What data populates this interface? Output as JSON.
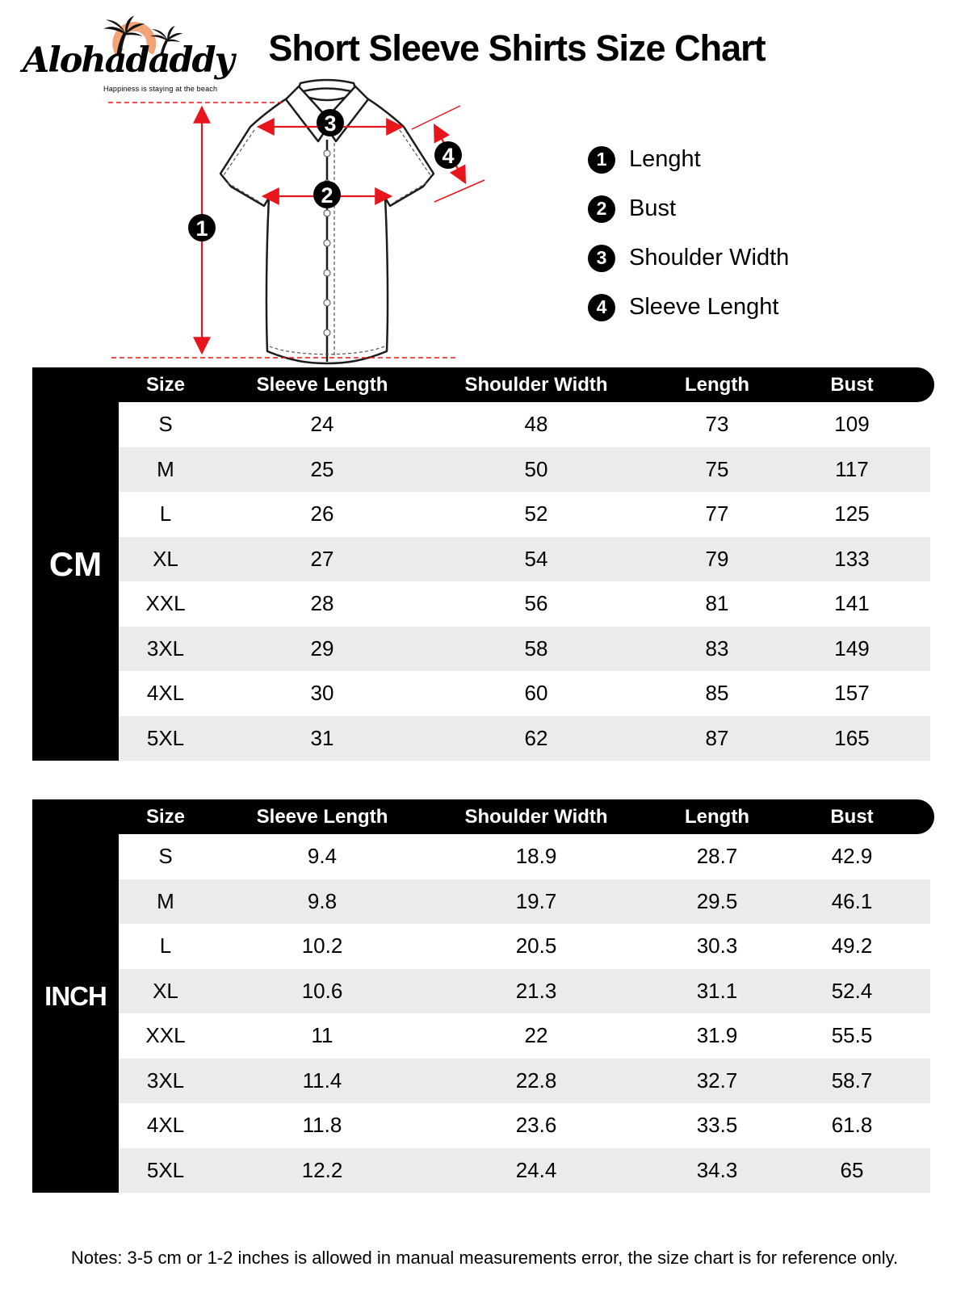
{
  "logo": {
    "brand": "Alohadaddy",
    "tagline": "Happiness is staying at the beach"
  },
  "title": "Short Sleeve Shirts Size Chart",
  "diagram": {
    "callout_1": "1",
    "callout_2": "2",
    "callout_3": "3",
    "callout_4": "4"
  },
  "legend": [
    {
      "num": "1",
      "label": "Lenght"
    },
    {
      "num": "2",
      "label": "Bust"
    },
    {
      "num": "3",
      "label": "Shoulder Width"
    },
    {
      "num": "4",
      "label": "Sleeve Lenght"
    }
  ],
  "tables": [
    {
      "unit": "CM",
      "headers": [
        "Size",
        "Sleeve Length",
        "Shoulder Width",
        "Length",
        "Bust"
      ],
      "rows": [
        [
          "S",
          "24",
          "48",
          "73",
          "109"
        ],
        [
          "M",
          "25",
          "50",
          "75",
          "117"
        ],
        [
          "L",
          "26",
          "52",
          "77",
          "125"
        ],
        [
          "XL",
          "27",
          "54",
          "79",
          "133"
        ],
        [
          "XXL",
          "28",
          "56",
          "81",
          "141"
        ],
        [
          "3XL",
          "29",
          "58",
          "83",
          "149"
        ],
        [
          "4XL",
          "30",
          "60",
          "85",
          "157"
        ],
        [
          "5XL",
          "31",
          "62",
          "87",
          "165"
        ]
      ]
    },
    {
      "unit": "INCH",
      "headers": [
        "Size",
        "Sleeve Length",
        "Shoulder Width",
        "Length",
        "Bust"
      ],
      "rows": [
        [
          "S",
          "9.4",
          "18.9",
          "28.7",
          "42.9"
        ],
        [
          "M",
          "9.8",
          "19.7",
          "29.5",
          "46.1"
        ],
        [
          "L",
          "10.2",
          "20.5",
          "30.3",
          "49.2"
        ],
        [
          "XL",
          "10.6",
          "21.3",
          "31.1",
          "52.4"
        ],
        [
          "XXL",
          "11",
          "22",
          "31.9",
          "55.5"
        ],
        [
          "3XL",
          "11.4",
          "22.8",
          "32.7",
          "58.7"
        ],
        [
          "4XL",
          "11.8",
          "23.6",
          "33.5",
          "61.8"
        ],
        [
          "5XL",
          "12.2",
          "24.4",
          "34.3",
          "65"
        ]
      ]
    }
  ],
  "notes": "Notes: 3-5 cm or 1-2 inches is allowed in manual measurements error, the size chart is for reference only.",
  "colors": {
    "accent_red": "#e8151d",
    "sun_orange": "#f2a477",
    "row_alt": "#ebebeb",
    "black": "#000000"
  }
}
